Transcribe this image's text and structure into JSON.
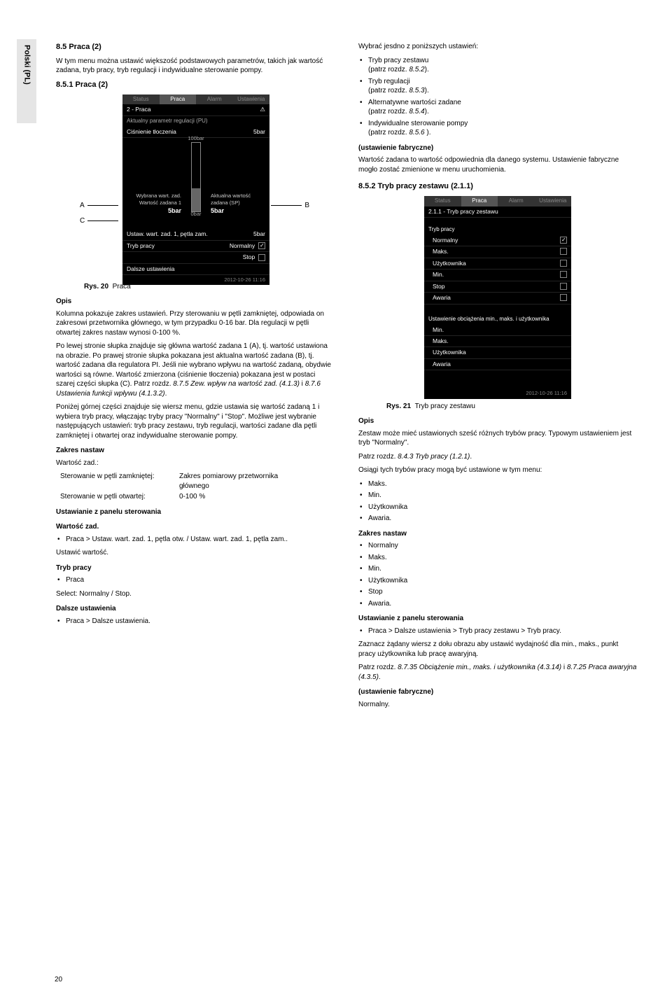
{
  "side_tab": "Polski (PL)",
  "page_number": "20",
  "left": {
    "h_8_5": "8.5 Praca (2)",
    "p_intro": "W tym menu można ustawić większość podstawowych parametrów, takich jak wartość zadana, tryb pracy, tryb regulacji i indywidualne sterowanie pompy.",
    "h_8_5_1": "8.5.1 Praca (2)",
    "fig20": {
      "tabs": [
        "Status",
        "Praca",
        "Alarm",
        "Ustawienia"
      ],
      "active_tab": 1,
      "crumb": "2 - Praca",
      "line1_l": "Aktualny parametr regulacji (PU)",
      "line1_r": "",
      "line2_l": "Ciśnienie tłoczenia",
      "line2_r": "5bar",
      "top_tick": "100bar",
      "bot_tick": "0bar",
      "left_lab1": "Wybrana wart. zad.",
      "left_lab2": "Wartość zadana 1",
      "left_val": "5bar",
      "right_lab1": "Aktualna wartość",
      "right_lab2": "zadana (SP)",
      "right_val": "5bar",
      "row_ust_l": "Ustaw. wart. zad. 1, pętla zam.",
      "row_ust_r": "5bar",
      "row_tryb_l": "Tryb pracy",
      "row_tryb_m": "Normalny",
      "row_tryb_s": "Stop",
      "row_dalsze": "Dalsze ustawienia",
      "timestamp": "2012-10-26 11:16",
      "caption_b": "Rys. 20",
      "caption_t": "Praca",
      "A": "A",
      "B": "B",
      "C": "C"
    },
    "h_opis": "Opis",
    "p_opis1": "Kolumna pokazuje zakres ustawień. Przy sterowaniu w pętli zamkniętej, odpowiada on zakresowi przetwornika głównego, w tym przypadku 0-16 bar. Dla regulacji w pętli otwartej zakres nastaw wynosi 0-100 %.",
    "p_opis2a": "Po lewej stronie słupka znajduje się główna wartość zadana 1 (A), tj. wartość ustawiona na obrazie. Po prawej stronie słupka pokazana jest aktualna wartość zadana (B), tj. wartość zadana dla regulatora PI. Jeśli nie wybrano wpływu na wartość zadaną, obydwie wartości są równe. Wartość zmierzona (ciśnienie tłoczenia) pokazana jest w postaci szarej części słupka (C). Patrz rozdz. ",
    "p_opis2_ref1": "8.7.5 Zew. wpływ na wartość zad. (4.1.3)",
    "p_opis2_mid": " i ",
    "p_opis2_ref2": "8.7.6 Ustawienia funkcji wpływu (4.1.3.2)",
    "p_opis2_end": ".",
    "p_opis3": "Poniżej górnej części znajduje się wiersz menu, gdzie ustawia się wartość zadaną 1 i wybiera tryb pracy, włączając tryby pracy \"Normalny\" i \"Stop\". Możliwe jest wybranie następujących ustawień: tryb pracy zestawu, tryb regulacji, wartości zadane dla pętli zamkniętej i otwartej oraz indywidualne sterowanie pompy.",
    "h_zakres": "Zakres nastaw",
    "p_wz": "Wartość zad.:",
    "tbl_r1c1": "Sterowanie w pętli zamkniętej:",
    "tbl_r1c2": "Zakres pomiarowy przetwornika głównego",
    "tbl_r2c1": "Sterowanie w pętli otwartej:",
    "tbl_r2c2": "0-100 %",
    "h_ust_panel": "Ustawianie z panelu sterowania",
    "h_wz2": "Wartość zad.",
    "bl_wz": "Praca > Ustaw. wart. zad. 1, pętla otw. / Ustaw. wart. zad. 1, pętla zam..",
    "p_ustw": "Ustawić wartość.",
    "h_tryb": "Tryb pracy",
    "bl_tryb": "Praca",
    "p_select": "Select: Normalny / Stop.",
    "h_dalsze": "Dalsze ustawienia",
    "bl_dalsze": "Praca > Dalsze ustawienia."
  },
  "right": {
    "p_wybr": "Wybrać jesdno z poniższych ustawień:",
    "items": [
      {
        "t": "Tryb pracy zestawu",
        "r": "(patrz rozdz. ",
        "i": "8.5.2",
        "e": ")."
      },
      {
        "t": "Tryb regulacji",
        "r": "(patrz rozdz. ",
        "i": "8.5.3",
        "e": ")."
      },
      {
        "t": "Alternatywne wartości zadane",
        "r": "(patrz rozdz. ",
        "i": "8.5.4",
        "e": ")."
      },
      {
        "t": "Indywidualne sterowanie pompy",
        "r": "(patrz rozdz. ",
        "i": "8.5.6",
        "e": " )."
      }
    ],
    "h_fabr": "(ustawienie fabryczne)",
    "p_fabr": "Wartość zadana to wartość odpowiednia dla danego systemu. Ustawienie fabryczne mogło zostać zmienione w menu uruchomienia.",
    "h_852": "8.5.2 Tryb pracy zestawu (2.1.1)",
    "fig21": {
      "tabs": [
        "Status",
        "Praca",
        "Alarm",
        "Ustawienia"
      ],
      "active_tab": 1,
      "crumb": "2.1.1 - Tryb pracy zestawu",
      "sec1_h": "Tryb pracy",
      "sec1_items": [
        "Normalny",
        "Maks.",
        "Użytkownika",
        "Min.",
        "Stop",
        "Awaria"
      ],
      "sec1_checked": 0,
      "sec2_h": "Ustawienie obciążenia min., maks. i użytkownika",
      "sec2_items": [
        "Min.",
        "Maks.",
        "Użytkownika",
        "Awaria"
      ],
      "timestamp": "2012-10-26 11:16",
      "caption_b": "Rys. 21",
      "caption_t": "Tryb pracy zestawu"
    },
    "h_opis": "Opis",
    "p_opis1a": "Zestaw może mieć ustawionych sześć różnych trybów pracy. Typowym ustawieniem jest tryb \"Normalny\".",
    "p_opis1b_pre": "Patrz rozdz. ",
    "p_opis1b_i": "8.4.3 Tryb pracy (1.2.1)",
    "p_opis1b_e": ".",
    "p_osiagi": "Osiągi tych trybów pracy mogą być ustawione w tym menu:",
    "bl_osiagi": [
      "Maks.",
      "Min.",
      "Użytkownika",
      "Awaria."
    ],
    "h_zakres": "Zakres nastaw",
    "bl_zakres": [
      "Normalny",
      "Maks.",
      "Min.",
      "Użytkownika",
      "Stop",
      "Awaria."
    ],
    "h_ust_panel": "Ustawianie z panelu sterowania",
    "bl_ust": "Praca > Dalsze ustawienia > Tryb pracy zestawu > Tryb pracy.",
    "p_zazn1": "Zaznacz żądany wiersz z dołu obrazu aby ustawić wydajność dla min., maks., punkt pracy użytkownika lub pracę awaryjną.",
    "p_zazn2_pre": "Patrz rozdz. ",
    "p_zazn2_i1": "8.7.35 Obciążenie min., maks. i użytkownika (4.3.14)",
    "p_zazn2_mid": " i ",
    "p_zazn2_i2": "8.7.25 Praca awaryjna (4.3.5)",
    "p_zazn2_e": ".",
    "h_fabr2": "(ustawienie fabryczne)",
    "p_fabr2": "Normalny."
  }
}
